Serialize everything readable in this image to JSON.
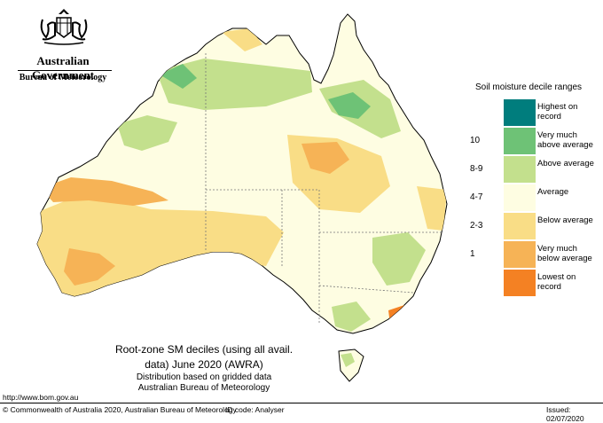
{
  "header": {
    "government": "Australian Government",
    "bureau": "Bureau of Meteorology",
    "crest_icon": "coat-of-arms-icon"
  },
  "legend": {
    "title": "Soil moisture decile ranges",
    "items": [
      {
        "code": "",
        "label": "Highest on record",
        "color": "#007d7d"
      },
      {
        "code": "10",
        "label": "Very much above average",
        "color": "#6ec276"
      },
      {
        "code": "8-9",
        "label": "Above average",
        "color": "#c3e08d"
      },
      {
        "code": "4-7",
        "label": "Average",
        "color": "#fefde2"
      },
      {
        "code": "2-3",
        "label": "Below average",
        "color": "#f9dd86"
      },
      {
        "code": "1",
        "label": "Very much below average",
        "color": "#f6b356"
      },
      {
        "code": "",
        "label": "Lowest on record",
        "color": "#f48123"
      }
    ]
  },
  "caption": {
    "line1": "Root-zone SM deciles (using all avail.",
    "line2": "data) June 2020 (AWRA)",
    "line3": "Distribution based on gridded data",
    "line4": "Australian Bureau of Meteorology"
  },
  "footer": {
    "url": "http://www.bom.gov.au",
    "copyright": "© Commonwealth of Australia 2020, Australian Bureau of Meteorology",
    "id_code": "ID code: Analyser",
    "issued": "Issued: 02/07/2020"
  }
}
